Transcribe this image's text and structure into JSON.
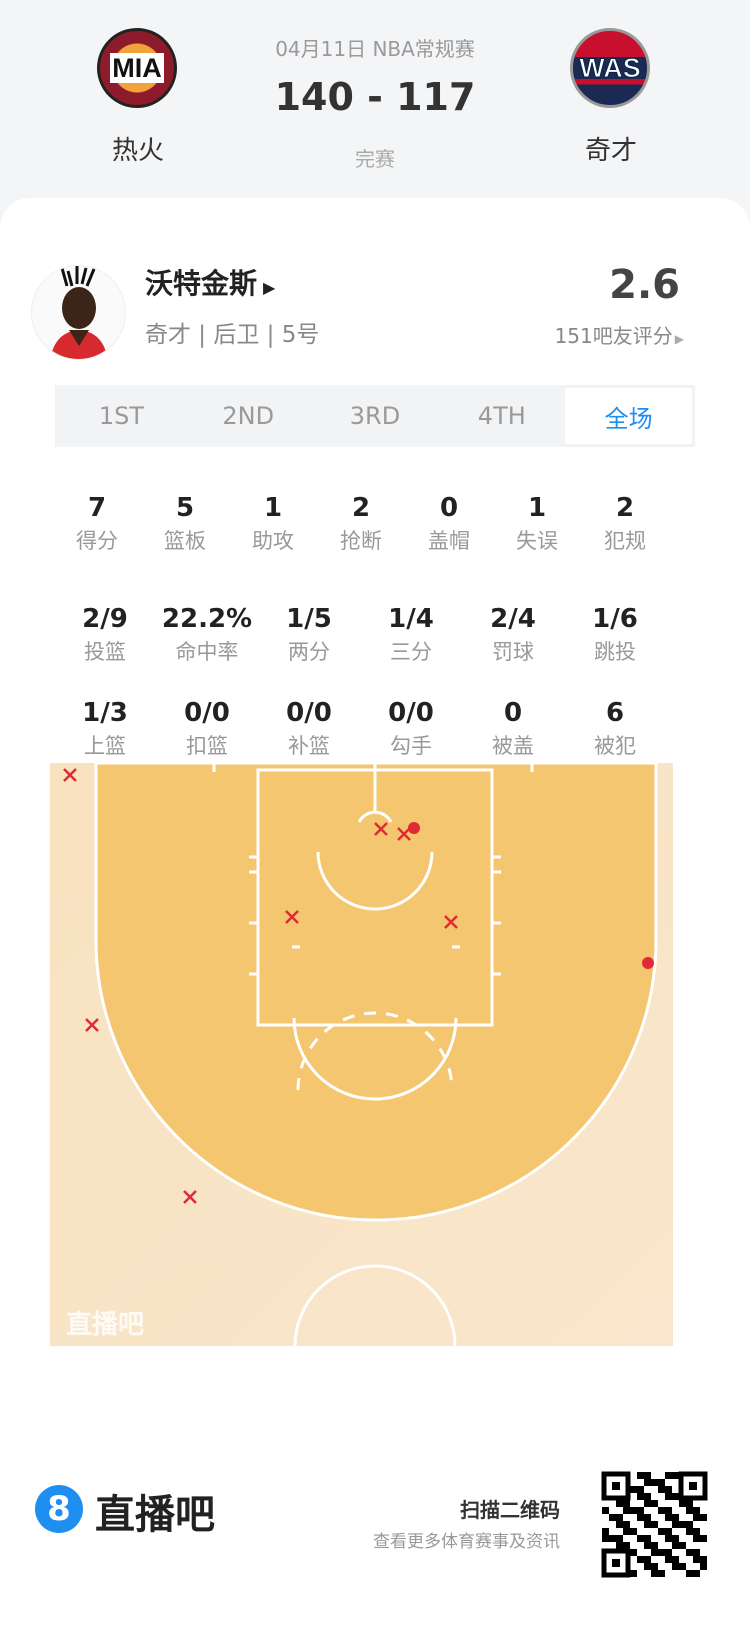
{
  "header": {
    "date_league": "04月11日 NBA常规赛",
    "score": "140 - 117",
    "status": "完赛",
    "home": {
      "name": "热火",
      "logo_text": "MIA"
    },
    "away": {
      "name": "奇才",
      "logo_text": "WAS"
    }
  },
  "player": {
    "name": "沃特金斯",
    "info": "奇才 | 后卫 | 5号",
    "rating": "2.6",
    "rating_count": "151吧友评分"
  },
  "tabs": [
    {
      "label": "1ST"
    },
    {
      "label": "2ND"
    },
    {
      "label": "3RD"
    },
    {
      "label": "4TH"
    },
    {
      "label": "全场",
      "active": true
    }
  ],
  "stats_row1": [
    {
      "v": "7",
      "l": "得分"
    },
    {
      "v": "5",
      "l": "篮板"
    },
    {
      "v": "1",
      "l": "助攻"
    },
    {
      "v": "2",
      "l": "抢断"
    },
    {
      "v": "0",
      "l": "盖帽"
    },
    {
      "v": "1",
      "l": "失误"
    },
    {
      "v": "2",
      "l": "犯规"
    }
  ],
  "stats_row2": [
    {
      "v": "2/9",
      "l": "投篮"
    },
    {
      "v": "22.2%",
      "l": "命中率"
    },
    {
      "v": "1/5",
      "l": "两分"
    },
    {
      "v": "1/4",
      "l": "三分"
    },
    {
      "v": "2/4",
      "l": "罚球"
    },
    {
      "v": "1/6",
      "l": "跳投"
    }
  ],
  "stats_row3": [
    {
      "v": "1/3",
      "l": "上篮"
    },
    {
      "v": "0/0",
      "l": "扣篮"
    },
    {
      "v": "0/0",
      "l": "补篮"
    },
    {
      "v": "0/0",
      "l": "勾手"
    },
    {
      "v": "0",
      "l": "被盖"
    },
    {
      "v": "6",
      "l": "被犯"
    }
  ],
  "shot_chart": {
    "watermark": "直播吧",
    "made_color": "#e02a35",
    "missed_color": "#e02a35",
    "shots": [
      "miss",
      "miss",
      "miss",
      "made",
      "miss",
      "miss",
      "made",
      "miss",
      "miss"
    ]
  },
  "footer": {
    "brand": "直播吧",
    "brand_icon": "8",
    "scan_title": "扫描二维码",
    "scan_sub": "查看更多体育赛事及资讯"
  },
  "colors": {
    "accent": "#1f8ef1",
    "court_inner": "#f5c670",
    "court_outer": "#f9e3c1"
  }
}
